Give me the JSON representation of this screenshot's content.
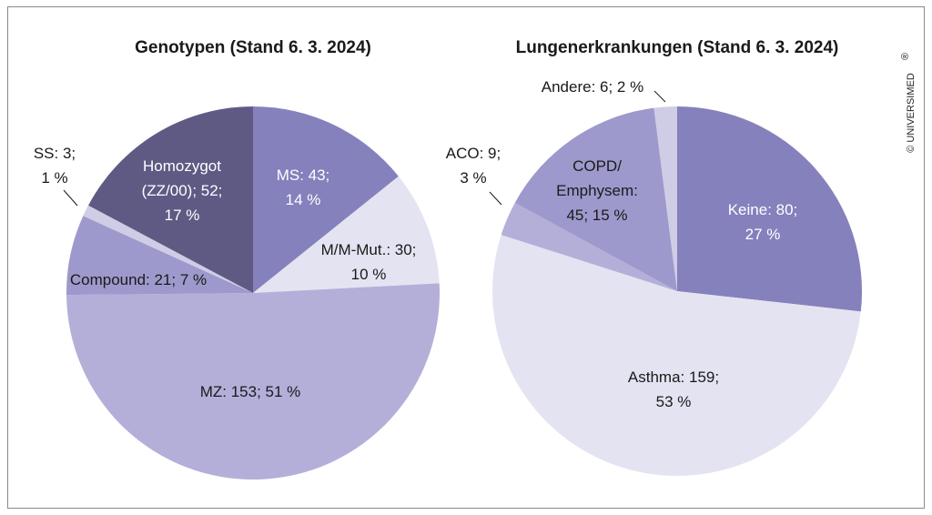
{
  "copyright": "© UNIVERSIMED",
  "copyright_mark": "®",
  "chart_data": [
    {
      "type": "pie",
      "title": "Genotypen (Stand 6. 3. 2024)",
      "slices": [
        {
          "category": "MS",
          "value": 43,
          "percent": 14,
          "color": "#8581bc",
          "label_lines": [
            "MS: 43;",
            "14 %"
          ],
          "text_color": "#ffffff"
        },
        {
          "category": "M/M-Mut.",
          "value": 30,
          "percent": 10,
          "color": "#e4e3f1",
          "label_lines": [
            "M/M-Mut.: 30;",
            "10 %"
          ],
          "text_color": "#1a1a1a"
        },
        {
          "category": "MZ",
          "value": 153,
          "percent": 51,
          "color": "#b3afd9",
          "label_lines": [
            "MZ: 153; 51 %"
          ],
          "text_color": "#1a1a1a"
        },
        {
          "category": "Compound",
          "value": 21,
          "percent": 7,
          "color": "#9d99cc",
          "label_lines": [
            "Compound: 21; 7 %"
          ],
          "text_color": "#1a1a1a"
        },
        {
          "category": "SS",
          "value": 3,
          "percent": 1,
          "color": "#cfcde6",
          "label_lines": [
            "SS: 3;",
            "1 %"
          ],
          "text_color": "#1a1a1a"
        },
        {
          "category": "Homozygot (ZZ/00)",
          "value": 52,
          "percent": 17,
          "color": "#5f5a84",
          "label_lines": [
            "Homozygot",
            "(ZZ/00); 52;",
            "17 %"
          ],
          "text_color": "#ffffff"
        }
      ]
    },
    {
      "type": "pie",
      "title": "Lungenerkrankungen (Stand 6. 3. 2024)",
      "slices": [
        {
          "category": "Keine",
          "value": 80,
          "percent": 27,
          "color": "#8581bc",
          "label_lines": [
            "Keine: 80;",
            "27 %"
          ],
          "text_color": "#ffffff"
        },
        {
          "category": "Asthma",
          "value": 159,
          "percent": 53,
          "color": "#e4e3f1",
          "label_lines": [
            "Asthma: 159;",
            "53 %"
          ],
          "text_color": "#1a1a1a"
        },
        {
          "category": "ACO",
          "value": 9,
          "percent": 3,
          "color": "#b3afd9",
          "label_lines": [
            "ACO: 9;",
            "3 %"
          ],
          "text_color": "#1a1a1a"
        },
        {
          "category": "COPD/Emphysem",
          "value": 45,
          "percent": 15,
          "color": "#9d99cc",
          "label_lines": [
            "COPD/",
            "Emphysem:",
            "45; 15 %"
          ],
          "text_color": "#1a1a1a"
        },
        {
          "category": "Andere",
          "value": 6,
          "percent": 2,
          "color": "#cfcde6",
          "label_lines": [
            "Andere: 6; 2 %"
          ],
          "text_color": "#1a1a1a"
        }
      ]
    }
  ]
}
